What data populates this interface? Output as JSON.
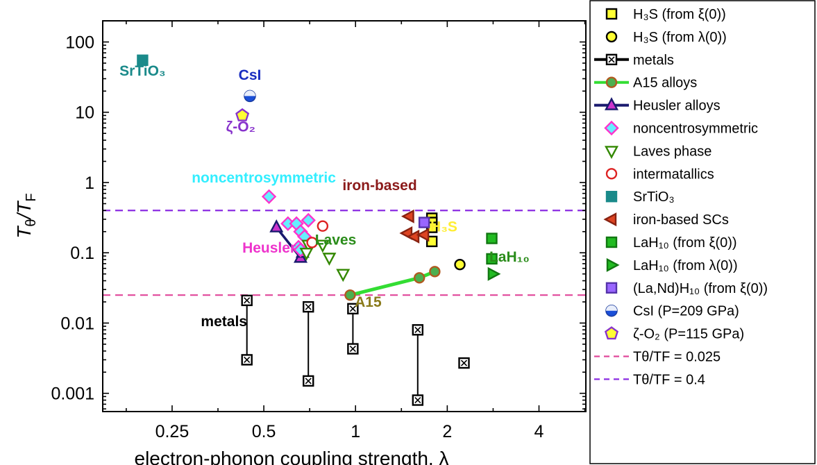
{
  "chart_data": {
    "type": "scatter",
    "xlabel": "electron-phonon coupling strength, λ",
    "ylabel": "Tθ/TF",
    "xscale": "log2",
    "yscale": "log10",
    "xlim": [
      0.148,
      5.7
    ],
    "ylim": [
      0.00055,
      200
    ],
    "xticks": [
      0.25,
      0.5,
      1,
      2,
      4
    ],
    "xtick_labels": [
      "0.25",
      "0.5",
      "1",
      "2",
      "4"
    ],
    "yticks": [
      0.001,
      0.01,
      0.1,
      1,
      10,
      100
    ],
    "ytick_labels": [
      "0.001",
      "0.01",
      "0.1",
      "1",
      "10",
      "100"
    ],
    "hlines": [
      {
        "y": 0.025,
        "color": "#e0479a",
        "style": "dashed"
      },
      {
        "y": 0.4,
        "color": "#8a2be2",
        "style": "dashed"
      }
    ],
    "series": [
      {
        "name": "H3S (from ξ(0))",
        "marker": "square",
        "fill": "#ffff33",
        "stroke": "#000000",
        "points": [
          [
            1.78,
            0.31
          ],
          [
            1.78,
            0.27
          ],
          [
            1.78,
            0.23
          ],
          [
            1.78,
            0.145
          ]
        ]
      },
      {
        "name": "H3S (from λ(0))",
        "marker": "circle",
        "fill": "#ffff33",
        "stroke": "#000000",
        "points": [
          [
            2.2,
            0.068
          ]
        ]
      },
      {
        "name": "metals",
        "marker": "xsquare",
        "fill": "#ffffff",
        "stroke": "#000000",
        "line": "#000000",
        "groups": [
          [
            [
              0.44,
              0.021
            ],
            [
              0.44,
              0.003
            ]
          ],
          [
            [
              0.7,
              0.017
            ],
            [
              0.7,
              0.0015
            ]
          ],
          [
            [
              0.98,
              0.016
            ],
            [
              0.98,
              0.0043
            ]
          ],
          [
            [
              1.6,
              0.008
            ],
            [
              1.6,
              0.0008
            ]
          ]
        ],
        "points": [
          [
            2.27,
            0.0027
          ]
        ]
      },
      {
        "name": "A15 alloys",
        "marker": "circle",
        "fill": "#4caf50",
        "stroke": "#b05a20",
        "line": "#33dd33",
        "points": [
          [
            0.96,
            0.025
          ],
          [
            1.62,
            0.044
          ],
          [
            1.82,
            0.054
          ]
        ]
      },
      {
        "name": "Heusler alloys",
        "marker": "triangle-up",
        "fill": "#cc33cc",
        "stroke": "#1a1a6e",
        "line": "#1a1a6e",
        "points": [
          [
            0.55,
            0.23
          ],
          [
            0.66,
            0.085
          ],
          [
            0.67,
            0.1
          ]
        ]
      },
      {
        "name": "noncentrosymmetric",
        "marker": "diamond",
        "fill": "#66eeff",
        "stroke": "#ff33cc",
        "points": [
          [
            0.52,
            0.63
          ],
          [
            0.6,
            0.26
          ],
          [
            0.64,
            0.26
          ],
          [
            0.7,
            0.29
          ],
          [
            0.66,
            0.2
          ],
          [
            0.68,
            0.17
          ],
          [
            0.65,
            0.12
          ],
          [
            0.66,
            0.11
          ]
        ]
      },
      {
        "name": "Laves phase",
        "marker": "triangle-down",
        "fill": "#ffffff",
        "stroke": "#338800",
        "points": [
          [
            0.7,
            0.13
          ],
          [
            0.78,
            0.13
          ],
          [
            0.82,
            0.085
          ],
          [
            0.91,
            0.05
          ],
          [
            0.69,
            0.1
          ]
        ]
      },
      {
        "name": "intermatallics",
        "marker": "circle",
        "fill": "#ffffff",
        "stroke": "#dd2222",
        "points": [
          [
            0.78,
            0.24
          ],
          [
            0.72,
            0.14
          ]
        ]
      },
      {
        "name": "SrTiO3",
        "marker": "square",
        "fill": "#1a8a8a",
        "stroke": "#1a8a8a",
        "points": [
          [
            0.2,
            55
          ]
        ]
      },
      {
        "name": "iron-based SCs",
        "marker": "triangle-left",
        "fill": "#dd4422",
        "stroke": "#882211",
        "points": [
          [
            1.5,
            0.33
          ],
          [
            1.48,
            0.19
          ],
          [
            1.56,
            0.17
          ],
          [
            1.68,
            0.18
          ]
        ]
      },
      {
        "name": "LaH10 (from ξ(0))",
        "marker": "square",
        "fill": "#22bb22",
        "stroke": "#117711",
        "points": [
          [
            2.8,
            0.16
          ],
          [
            2.8,
            0.082
          ]
        ]
      },
      {
        "name": "LaH10 (from λ(0))",
        "marker": "triangle-right",
        "fill": "#22bb22",
        "stroke": "#117711",
        "points": [
          [
            2.82,
            0.05
          ]
        ]
      },
      {
        "name": "(La,Nd)H10 (from ξ(0))",
        "marker": "square",
        "fill": "#9966ff",
        "stroke": "#5533aa",
        "points": [
          [
            1.68,
            0.27
          ]
        ]
      },
      {
        "name": "CsI (P=209 GPa)",
        "marker": "halfcircle",
        "fill": "#1a4fd8",
        "stroke": "#1a3ca0",
        "points": [
          [
            0.45,
            17
          ]
        ]
      },
      {
        "name": "ζ-O2 (P=115 GPa)",
        "marker": "pentagon",
        "fill": "#ffff33",
        "stroke": "#8833cc",
        "points": [
          [
            0.425,
            9
          ]
        ]
      }
    ],
    "annotations": [
      {
        "text": "SrTiO₃",
        "x": 0.2,
        "y": 33,
        "color": "#1a8a8a"
      },
      {
        "text": "CsI",
        "x": 0.45,
        "y": 29,
        "color": "#1a2ec0"
      },
      {
        "text": "ζ-O₂",
        "x": 0.42,
        "y": 5.3,
        "color": "#8833cc"
      },
      {
        "text": "noncentrosymmetric",
        "x": 0.5,
        "y": 1.0,
        "color": "#33eeff"
      },
      {
        "text": "iron-based",
        "x": 1.2,
        "y": 0.78,
        "color": "#8b1a1a"
      },
      {
        "text": "Heusler",
        "x": 0.52,
        "y": 0.1,
        "color": "#ee33cc"
      },
      {
        "text": "Laves",
        "x": 0.86,
        "y": 0.13,
        "color": "#2a8c1a"
      },
      {
        "text": "H₃S",
        "x": 1.95,
        "y": 0.2,
        "color": "#ffee33"
      },
      {
        "text": "LaH₁₀",
        "x": 3.2,
        "y": 0.075,
        "color": "#2a8c1a"
      },
      {
        "text": "A15",
        "x": 1.1,
        "y": 0.017,
        "color": "#8a7a1a"
      },
      {
        "text": "metals",
        "x": 0.37,
        "y": 0.009,
        "color": "#000000"
      }
    ],
    "legend": {
      "placement": "right",
      "entries": [
        {
          "label": "H₃S (from ξ(0))",
          "marker": "square",
          "fill": "#ffff33",
          "stroke": "#000000",
          "line": null
        },
        {
          "label": "H₃S (from λ(0))",
          "marker": "circle",
          "fill": "#ffff33",
          "stroke": "#000000",
          "line": null
        },
        {
          "label": "metals",
          "marker": "xsquare",
          "fill": "#ffffff",
          "stroke": "#000000",
          "line": "#000000"
        },
        {
          "label": "A15 alloys",
          "marker": "circle",
          "fill": "#4caf50",
          "stroke": "#b05a20",
          "line": "#33dd33"
        },
        {
          "label": "Heusler alloys",
          "marker": "triangle-up",
          "fill": "#cc33cc",
          "stroke": "#1a1a6e",
          "line": "#1a1a6e"
        },
        {
          "label": "noncentrosymmetric",
          "marker": "diamond",
          "fill": "#66eeff",
          "stroke": "#ff33cc",
          "line": null
        },
        {
          "label": "Laves phase",
          "marker": "triangle-down",
          "fill": "#ffffff",
          "stroke": "#338800",
          "line": null
        },
        {
          "label": " intermatallics",
          "marker": "circle",
          "fill": "#ffffff",
          "stroke": "#dd2222",
          "line": null
        },
        {
          "label": "SrTiO₃",
          "marker": "square",
          "fill": "#1a8a8a",
          "stroke": "#1a8a8a",
          "line": null
        },
        {
          "label": "iron-based SCs",
          "marker": "triangle-left",
          "fill": "#dd4422",
          "stroke": "#882211",
          "line": null
        },
        {
          "label": "LaH₁₀ (from ξ(0))",
          "marker": "square",
          "fill": "#22bb22",
          "stroke": "#117711",
          "line": null
        },
        {
          "label": "LaH₁₀ (from λ(0))",
          "marker": "triangle-right",
          "fill": "#22bb22",
          "stroke": "#117711",
          "line": null
        },
        {
          "label": "(La,Nd)H₁₀ (from ξ(0))",
          "marker": "square",
          "fill": "#9966ff",
          "stroke": "#5533aa",
          "line": null
        },
        {
          "label": "CsI (P=209 GPa)",
          "marker": "halfcircle",
          "fill": "#1a4fd8",
          "stroke": "#1a3ca0",
          "line": null
        },
        {
          "label": "ζ-O₂ (P=115 GPa)",
          "marker": "pentagon",
          "fill": "#ffff33",
          "stroke": "#8833cc",
          "line": null
        },
        {
          "label": "Tθ/TF = 0.025",
          "marker": null,
          "fill": null,
          "stroke": null,
          "line": "#e0479a",
          "dashed": true
        },
        {
          "label": "Tθ/TF = 0.4",
          "marker": null,
          "fill": null,
          "stroke": null,
          "line": "#8a2be2",
          "dashed": true
        }
      ]
    }
  }
}
